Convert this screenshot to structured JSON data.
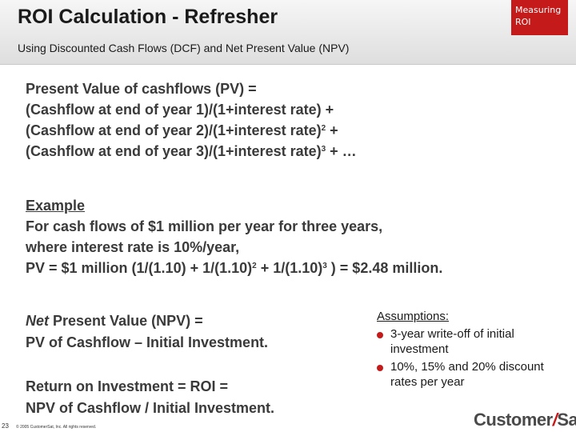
{
  "header": {
    "title": "ROI Calculation - Refresher",
    "badge_line1": "Measuring",
    "badge_line2": "ROI",
    "badge_color": "#c41a1a",
    "subtitle": "Using Discounted Cash Flows (DCF) and Net Present Value (NPV)"
  },
  "pv": {
    "line1": "Present Value of cashflows (PV) =",
    "line2": "(Cashflow at end of year 1)/(1+interest rate) +",
    "line3": "(Cashflow at end of year 2)/(1+interest rate)",
    "line3_exp": "2",
    "line3_tail": " +",
    "line4": "(Cashflow at end of year 3)/(1+interest rate)",
    "line4_exp": "3",
    "line4_tail": " + …"
  },
  "example": {
    "heading": "Example",
    "line1": "For cash flows of $1 million per year for three years,",
    "line2": "where interest rate is 10%/year,",
    "formula_a": "PV = $1 million (1/(1.10) + 1/(1.10)",
    "formula_exp1": "2",
    "formula_b": " + 1/(1.10)",
    "formula_exp2": "3",
    "formula_c": " ) = $2.48 million."
  },
  "npv": {
    "italic": "Net",
    "line1_rest": " Present Value (NPV) =",
    "line2": "PV of Cashflow – Initial Investment."
  },
  "roi": {
    "line1": "Return on Investment = ROI =",
    "line2": "NPV of Cashflow / Initial Investment."
  },
  "assumptions": {
    "title": "Assumptions:",
    "items": [
      "3-year write-off of initial investment",
      "10%, 15% and 20% discount rates per year"
    ]
  },
  "footer": {
    "page_number": "23",
    "copyright": "© 2005 CustomerSat, Inc. All rights reserved.",
    "logo_left": "Customer",
    "logo_slash": "/",
    "logo_right": "Sat"
  }
}
